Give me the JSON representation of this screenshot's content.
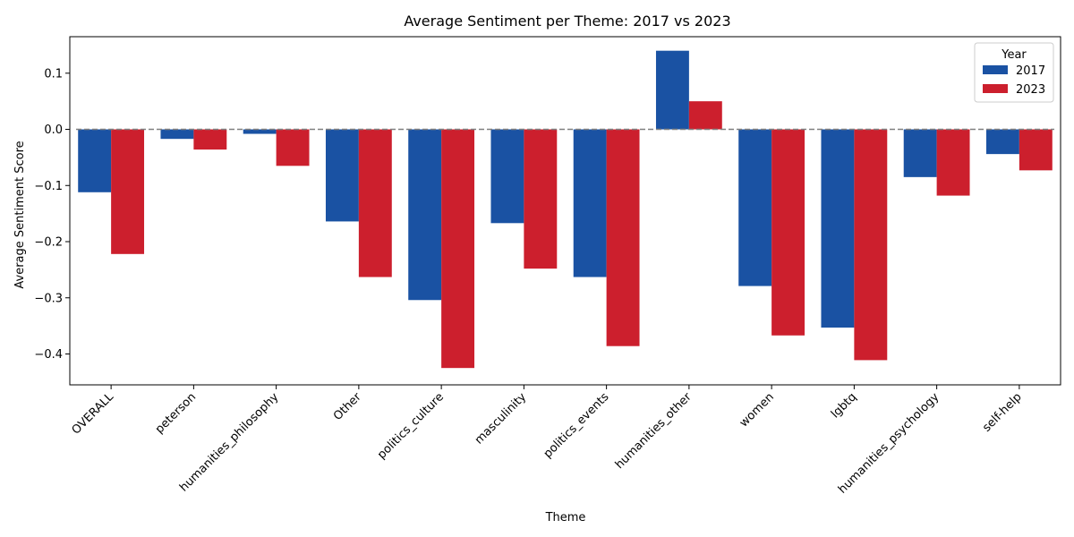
{
  "chart_data": {
    "type": "bar",
    "title": "Average Sentiment per Theme: 2017 vs 2023",
    "xlabel": "Theme",
    "ylabel": "Average Sentiment Score",
    "ylim": [
      -0.455,
      0.165
    ],
    "yticks": [
      -0.4,
      -0.3,
      -0.2,
      -0.1,
      0.0,
      0.1
    ],
    "ytick_labels": [
      "−0.4",
      "−0.3",
      "−0.2",
      "−0.1",
      "0.0",
      "0.1"
    ],
    "categories": [
      "OVERALL",
      "peterson",
      "humanities_philosophy",
      "Other",
      "politics_culture",
      "masculinity",
      "politics_events",
      "humanities_other",
      "women",
      "lgbtq",
      "humanities_psychology",
      "self-help"
    ],
    "series": [
      {
        "name": "2017",
        "color": "#1a52a3",
        "values": [
          -0.112,
          -0.017,
          -0.008,
          -0.164,
          -0.304,
          -0.167,
          -0.263,
          0.14,
          -0.279,
          -0.353,
          -0.085,
          -0.044
        ]
      },
      {
        "name": "2023",
        "color": "#cc1f2d",
        "values": [
          -0.222,
          -0.036,
          -0.065,
          -0.263,
          -0.425,
          -0.248,
          -0.386,
          0.05,
          -0.367,
          -0.411,
          -0.118,
          -0.073
        ]
      }
    ],
    "legend": {
      "title": "Year",
      "placement": "top-right"
    },
    "reference_line": {
      "y": 0,
      "style": "dashed",
      "color": "#808080"
    },
    "grid": false
  }
}
